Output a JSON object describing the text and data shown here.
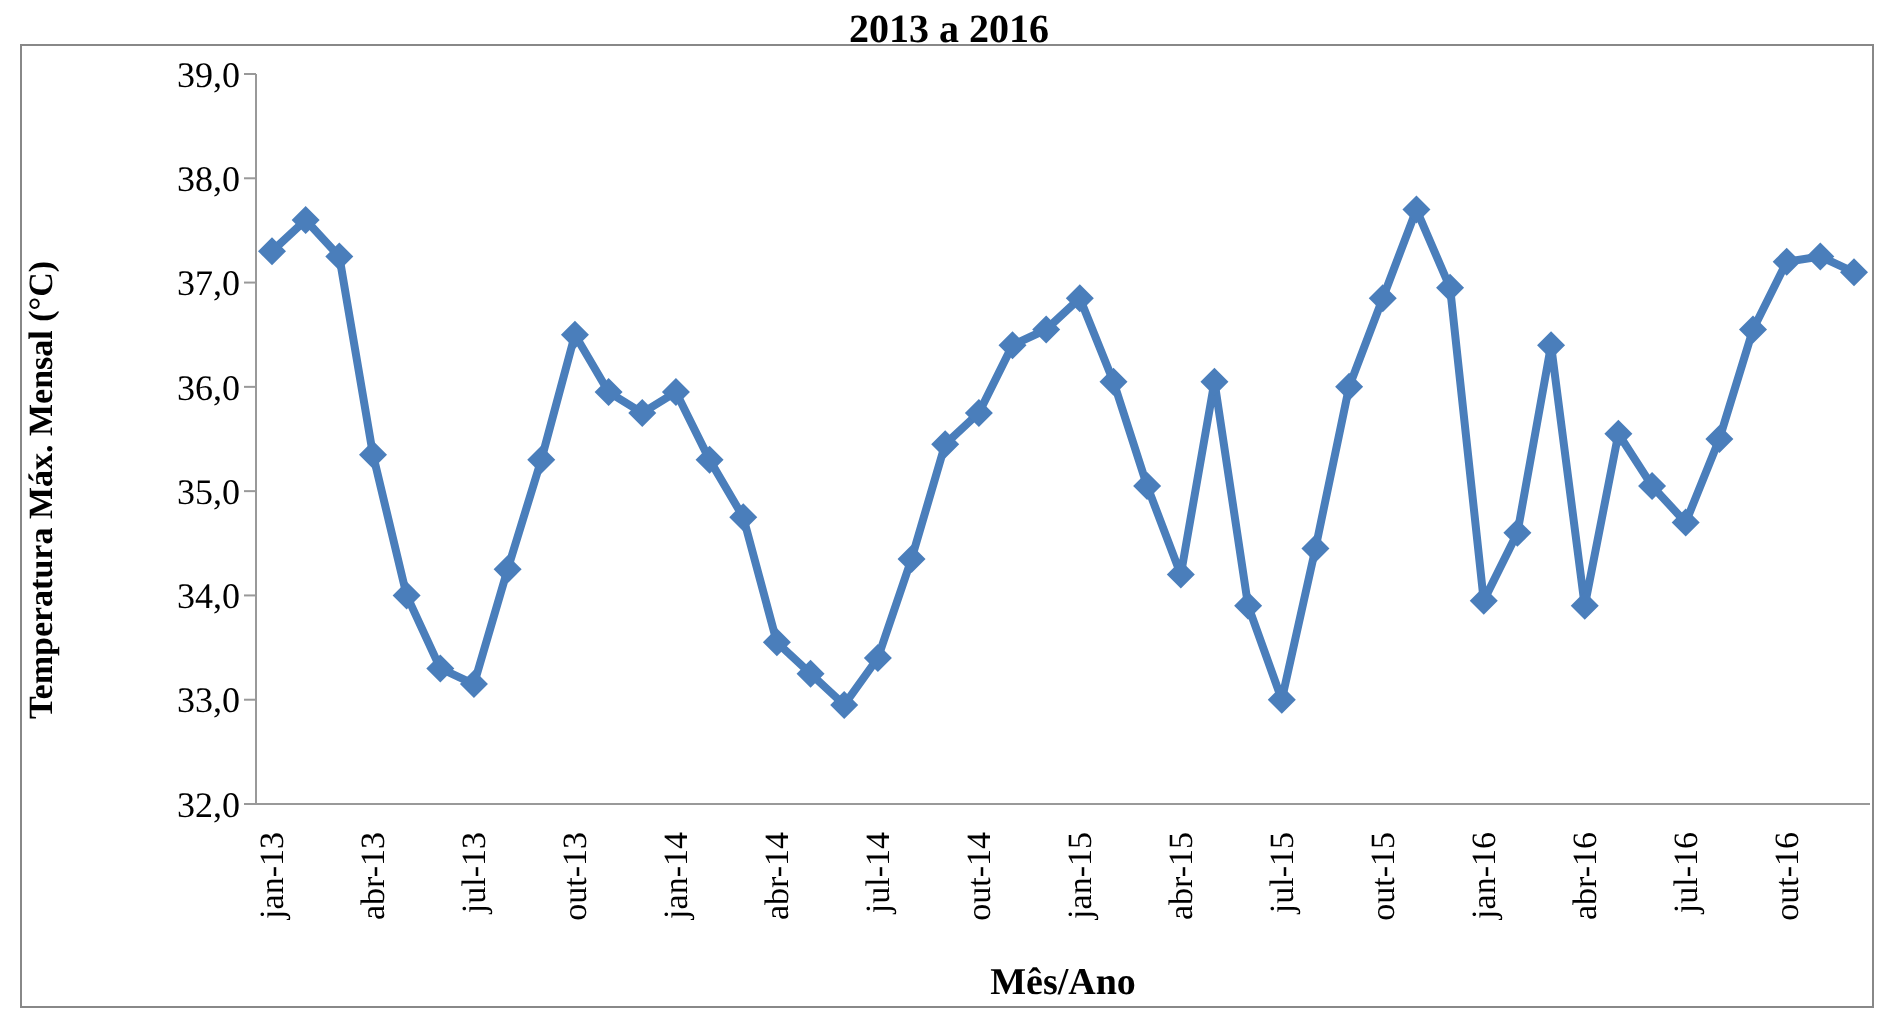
{
  "chart_data": {
    "type": "line",
    "title": "2013 a 2016",
    "xlabel": "Mês/Ano",
    "ylabel": "Temperatura  Máx. Mensal (°C)",
    "categories": [
      "jan-13",
      null,
      null,
      "abr-13",
      null,
      null,
      "jul-13",
      null,
      null,
      "out-13",
      null,
      null,
      "jan-14",
      null,
      null,
      "abr-14",
      null,
      null,
      "jul-14",
      null,
      null,
      "out-14",
      null,
      null,
      "jan-15",
      null,
      null,
      "abr-15",
      null,
      null,
      "jul-15",
      null,
      null,
      "out-15",
      null,
      null,
      "jan-16",
      null,
      null,
      "abr-16",
      null,
      null,
      "jul-16",
      null,
      null,
      "out-16",
      null,
      null
    ],
    "series": [
      {
        "color": "#4a7ebb",
        "values": [
          37.3,
          37.6,
          37.25,
          35.35,
          34.0,
          33.3,
          33.15,
          34.25,
          35.3,
          36.5,
          35.95,
          35.75,
          35.95,
          35.3,
          34.75,
          33.55,
          33.25,
          32.95,
          33.4,
          34.35,
          35.45,
          35.75,
          36.4,
          36.55,
          36.85,
          36.05,
          35.05,
          34.2,
          36.05,
          33.9,
          33.0,
          34.45,
          36.0,
          36.85,
          37.7,
          36.95,
          33.95,
          34.6,
          36.4,
          33.9,
          35.55,
          35.05,
          34.7,
          35.5,
          36.55,
          37.2,
          37.25,
          37.1
        ]
      }
    ],
    "ylim": [
      32,
      39
    ],
    "yticks": [
      {
        "value": 32,
        "label": "32,0"
      },
      {
        "value": 33,
        "label": "33,0"
      },
      {
        "value": 34,
        "label": "34,0"
      },
      {
        "value": 35,
        "label": "35,0"
      },
      {
        "value": 36,
        "label": "36,0"
      },
      {
        "value": 37,
        "label": "37,0"
      },
      {
        "value": 38,
        "label": "38,0"
      },
      {
        "value": 39,
        "label": "39,0"
      }
    ],
    "marker": "diamond",
    "line_style": "solid",
    "grid": false,
    "legend": false
  }
}
